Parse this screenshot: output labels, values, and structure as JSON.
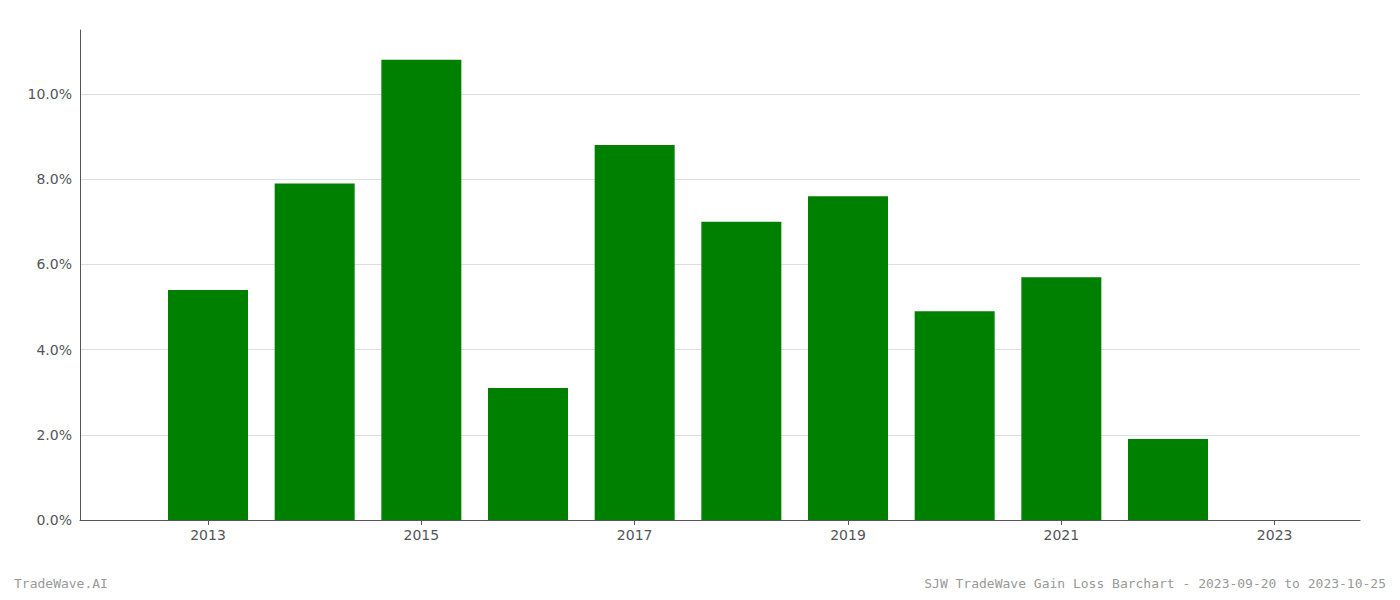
{
  "chart_data": {
    "type": "bar",
    "x": [
      2013,
      2014,
      2015,
      2016,
      2017,
      2018,
      2019,
      2020,
      2021,
      2022
    ],
    "values": [
      0.054,
      0.079,
      0.108,
      0.031,
      0.088,
      0.07,
      0.076,
      0.049,
      0.057,
      0.019
    ],
    "color": "#008000",
    "xlim": [
      2011.8,
      2023.8
    ],
    "xticks": [
      2013,
      2015,
      2017,
      2019,
      2021,
      2023
    ],
    "ylim": [
      0,
      0.115
    ],
    "yticks": [
      {
        "value": 0.0,
        "label": "0.0%"
      },
      {
        "value": 0.02,
        "label": "2.0%"
      },
      {
        "value": 0.04,
        "label": "4.0%"
      },
      {
        "value": 0.06,
        "label": "6.0%"
      },
      {
        "value": 0.08,
        "label": "8.0%"
      },
      {
        "value": 0.1,
        "label": "10.0%"
      }
    ],
    "grid": true,
    "annotations": [
      "TradeWave.AI",
      "SJW TradeWave Gain Loss Barchart - 2023-09-20 to 2023-10-25"
    ]
  }
}
